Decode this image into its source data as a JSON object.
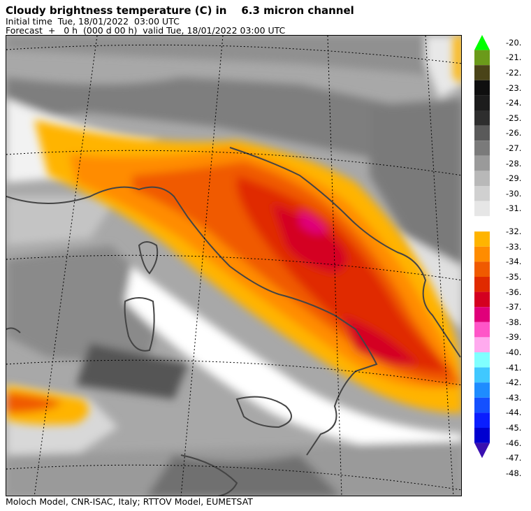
{
  "header": {
    "title": "Cloudy brightness temperature (C) in    6.3 micron channel",
    "initial": "Initial time  Tue, 18/01/2022  03:00 UTC",
    "forecast": "Forecast  +   0 h  (000 d 00 h)  valid Tue, 18/01/2022 03:00 UTC"
  },
  "footer": "Moloch Model, CNR-ISAC, Italy; RTTOV Model, EUMETSAT",
  "colorbar": {
    "labels": [
      "-20.",
      "-21.",
      "-22.",
      "-23.",
      "-24.",
      "-25.",
      "-26.",
      "-27.",
      "-28.",
      "-29.",
      "-30.",
      "-31.",
      "-32.",
      "-33.",
      "-34.",
      "-35.",
      "-36.",
      "-37.",
      "-38.",
      "-39.",
      "-40.",
      "-41.",
      "-42.",
      "-43.",
      "-44.",
      "-45.",
      "-46.",
      "-47.",
      "-48."
    ],
    "upper_colors": [
      "#00ff00",
      "#6b9a1a",
      "#4a4418",
      "#0f0f0f",
      "#1c1c1c",
      "#2e2e2e",
      "#5a5a5a",
      "#7a7a7a",
      "#9a9a9a",
      "#b8b8b8",
      "#d0d0d0",
      "#e6e6e6"
    ],
    "lower_colors": [
      "#ffb400",
      "#ff8c00",
      "#f05a00",
      "#e02a00",
      "#d40020",
      "#e0007a",
      "#ff55c8",
      "#ffaaee",
      "#80ffff",
      "#40c8ff",
      "#1e8cff",
      "#1450ff",
      "#0a1eff",
      "#0000d0",
      "#3a10b0"
    ]
  }
}
